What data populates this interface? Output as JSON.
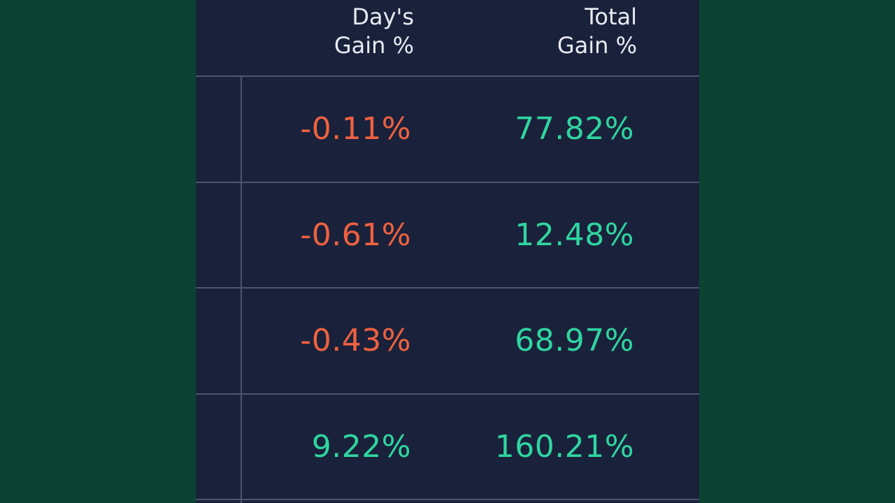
{
  "colors": {
    "background": "#0b4233",
    "panel": "#1a223b",
    "divider": "#4d566c",
    "header_text": "#e9ecf4",
    "negative": "#f0613f",
    "positive": "#2fd6a0"
  },
  "header": {
    "days_gain_line1": "Day's",
    "days_gain_line2": "Gain %",
    "total_gain_line1": "Total",
    "total_gain_line2": "Gain %"
  },
  "rows": [
    {
      "days_gain": "-0.11%",
      "days_sign": "negative",
      "total_gain": "77.82%",
      "total_sign": "positive"
    },
    {
      "days_gain": "-0.61%",
      "days_sign": "negative",
      "total_gain": "12.48%",
      "total_sign": "positive"
    },
    {
      "days_gain": "-0.43%",
      "days_sign": "negative",
      "total_gain": "68.97%",
      "total_sign": "positive"
    },
    {
      "days_gain": "9.22%",
      "days_sign": "positive",
      "total_gain": "160.21%",
      "total_sign": "positive"
    }
  ]
}
